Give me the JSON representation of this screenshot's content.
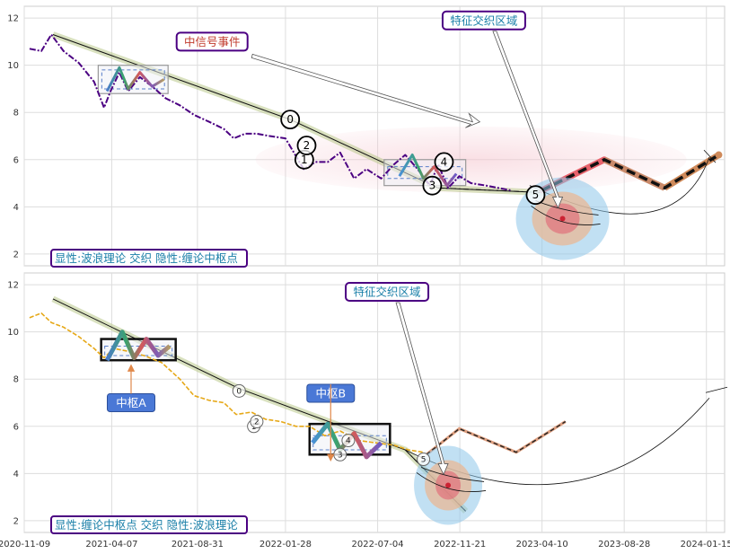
{
  "chart_data": [
    {
      "type": "line",
      "panel": "top",
      "ylim": [
        1.5,
        12.5
      ],
      "yticks": [
        2,
        4,
        6,
        8,
        10,
        12
      ],
      "x_range": [
        "2020-11-09",
        "2024-02-15"
      ],
      "grid": true,
      "price_color": "#4b0082",
      "price_series": [
        [
          "2020-11-18",
          10.7
        ],
        [
          "2020-12-08",
          10.6
        ],
        [
          "2020-12-25",
          11.3
        ],
        [
          "2021-01-15",
          10.6
        ],
        [
          "2021-02-10",
          10.1
        ],
        [
          "2021-03-08",
          9.3
        ],
        [
          "2021-03-25",
          8.2
        ],
        [
          "2021-04-05",
          8.9
        ],
        [
          "2021-04-20",
          9.7
        ],
        [
          "2021-05-05",
          8.9
        ],
        [
          "2021-05-25",
          9.5
        ],
        [
          "2021-06-15",
          9.1
        ],
        [
          "2021-07-08",
          8.6
        ],
        [
          "2021-08-01",
          8.3
        ],
        [
          "2021-08-25",
          7.9
        ],
        [
          "2021-09-20",
          7.6
        ],
        [
          "2021-10-15",
          7.3
        ],
        [
          "2021-11-01",
          6.9
        ],
        [
          "2021-11-20",
          7.1
        ],
        [
          "2021-12-10",
          7.1
        ],
        [
          "2022-01-01",
          7.0
        ],
        [
          "2022-01-28",
          6.9
        ],
        [
          "2022-02-28",
          5.6
        ],
        [
          "2022-03-20",
          5.9
        ],
        [
          "2022-04-10",
          5.9
        ],
        [
          "2022-05-01",
          6.3
        ],
        [
          "2022-05-25",
          5.2
        ],
        [
          "2022-06-15",
          5.6
        ],
        [
          "2022-07-10",
          5.2
        ],
        [
          "2022-08-01",
          5.8
        ],
        [
          "2022-08-20",
          6.2
        ],
        [
          "2022-09-10",
          5.6
        ],
        [
          "2022-10-01",
          4.9
        ],
        [
          "2022-10-15",
          5.8
        ],
        [
          "2022-11-01",
          4.8
        ],
        [
          "2022-11-20",
          5.3
        ],
        [
          "2022-12-10",
          5.0
        ],
        [
          "2023-01-05",
          4.9
        ],
        [
          "2023-02-15",
          4.7
        ]
      ],
      "zones": [
        {
          "x0": "2021-03-15",
          "x1": "2021-07-12",
          "y0": 9.0,
          "y1": 9.8,
          "outer": [
            8.8,
            10.0
          ]
        },
        {
          "x0": "2022-07-15",
          "x1": "2022-12-01",
          "y0": 5.2,
          "y1": 5.7,
          "outer": [
            4.9,
            6.0
          ]
        }
      ],
      "waves": [
        [
          [
            "2021-03-30",
            8.9
          ],
          [
            "2021-04-20",
            9.9
          ],
          [
            "2021-05-05",
            9.0
          ],
          [
            "2021-05-25",
            9.7
          ],
          [
            "2021-06-15",
            9.1
          ],
          [
            "2021-07-05",
            9.4
          ]
        ],
        [
          [
            "2022-08-10",
            5.3
          ],
          [
            "2022-09-01",
            6.2
          ],
          [
            "2022-09-20",
            5.2
          ],
          [
            "2022-10-08",
            5.7
          ],
          [
            "2022-10-30",
            4.9
          ],
          [
            "2022-11-15",
            5.4
          ]
        ]
      ],
      "trend_line": [
        [
          "2020-12-28",
          11.3
        ],
        [
          "2022-02-05",
          7.7
        ],
        [
          "2022-10-15",
          4.8
        ],
        [
          "2023-04-15",
          4.6
        ]
      ],
      "pivots": [
        {
          "label": "0",
          "x": "2022-02-05",
          "y": 7.7
        },
        {
          "label": "1",
          "x": "2022-03-01",
          "y": 6.0
        },
        {
          "label": "2",
          "x": "2022-03-05",
          "y": 6.6
        },
        {
          "label": "3",
          "x": "2022-10-05",
          "y": 4.9
        },
        {
          "label": "4",
          "x": "2022-10-25",
          "y": 5.9
        },
        {
          "label": "5",
          "x": "2023-03-30",
          "y": 4.5
        }
      ],
      "forecast": [
        [
          "2023-04-10",
          4.7
        ],
        [
          "2023-07-25",
          6.0
        ],
        [
          "2023-11-05",
          4.8
        ],
        [
          "2024-02-05",
          6.2
        ]
      ],
      "annotations": [
        {
          "text": "中信号事件",
          "x": "2021-09-25",
          "y": 11.0,
          "color": "#c0392b"
        },
        {
          "text": "特征交织区域",
          "x": "2023-01-01",
          "y": 11.9,
          "color": "#1a7fa8"
        }
      ],
      "legend_text": "显性:波浪理论 交织 隐性:缠论中枢点"
    },
    {
      "type": "line",
      "panel": "bottom",
      "ylim": [
        1.5,
        12.5
      ],
      "yticks": [
        2,
        4,
        6,
        8,
        10,
        12
      ],
      "x_range": [
        "2020-11-09",
        "2024-02-15"
      ],
      "grid": true,
      "price_color": "#e6a817",
      "price_series": [
        [
          "2020-11-18",
          10.6
        ],
        [
          "2020-12-08",
          10.8
        ],
        [
          "2020-12-25",
          10.4
        ],
        [
          "2021-01-15",
          10.2
        ],
        [
          "2021-02-10",
          9.8
        ],
        [
          "2021-03-08",
          9.3
        ],
        [
          "2021-03-25",
          8.9
        ],
        [
          "2021-04-10",
          9.3
        ],
        [
          "2021-05-01",
          9.2
        ],
        [
          "2021-06-01",
          9.0
        ],
        [
          "2021-07-01",
          8.7
        ],
        [
          "2021-08-01",
          8.0
        ],
        [
          "2021-08-25",
          7.3
        ],
        [
          "2021-09-20",
          7.1
        ],
        [
          "2021-10-15",
          7.0
        ],
        [
          "2021-11-05",
          6.5
        ],
        [
          "2021-12-01",
          6.6
        ],
        [
          "2021-12-25",
          6.3
        ],
        [
          "2022-01-20",
          6.2
        ],
        [
          "2022-02-15",
          6.0
        ],
        [
          "2022-03-10",
          6.0
        ],
        [
          "2022-04-05",
          5.6
        ],
        [
          "2022-05-01",
          5.8
        ],
        [
          "2022-06-01",
          5.4
        ],
        [
          "2022-07-01",
          5.3
        ],
        [
          "2022-08-01",
          5.2
        ],
        [
          "2022-08-25",
          5.0
        ],
        [
          "2022-09-20",
          4.9
        ]
      ],
      "zones": [
        {
          "x0": "2021-03-20",
          "x1": "2021-07-25",
          "y0": 9.0,
          "y1": 9.4,
          "outer": [
            8.8,
            9.7
          ]
        },
        {
          "x0": "2022-03-10",
          "x1": "2022-07-25",
          "y0": 5.0,
          "y1": 5.6,
          "outer": [
            4.8,
            6.1
          ]
        }
      ],
      "waves": [
        [
          [
            "2021-03-30",
            8.8
          ],
          [
            "2021-04-25",
            10.0
          ],
          [
            "2021-05-15",
            8.9
          ],
          [
            "2021-06-05",
            9.7
          ],
          [
            "2021-06-25",
            9.0
          ],
          [
            "2021-07-15",
            9.4
          ]
        ],
        [
          [
            "2022-03-15",
            5.3
          ],
          [
            "2022-04-10",
            6.1
          ],
          [
            "2022-05-01",
            5.0
          ],
          [
            "2022-05-25",
            5.7
          ],
          [
            "2022-06-15",
            4.7
          ],
          [
            "2022-07-10",
            5.3
          ]
        ]
      ],
      "trend_line": [
        [
          "2020-12-28",
          11.4
        ],
        [
          "2021-11-10",
          7.6
        ],
        [
          "2022-08-20",
          5.0
        ],
        [
          "2022-12-01",
          2.4
        ]
      ],
      "pivots": [
        {
          "label": "0",
          "x": "2021-11-10",
          "y": 7.5
        },
        {
          "label": "1",
          "x": "2021-12-05",
          "y": 6.0
        },
        {
          "label": "2",
          "x": "2021-12-10",
          "y": 6.2
        },
        {
          "label": "3",
          "x": "2022-05-01",
          "y": 4.8
        },
        {
          "label": "4",
          "x": "2022-05-15",
          "y": 5.4
        },
        {
          "label": "5",
          "x": "2022-09-20",
          "y": 4.6
        }
      ],
      "forecast": [
        [
          "2022-09-25",
          4.8
        ],
        [
          "2022-11-20",
          5.9
        ],
        [
          "2023-02-25",
          4.9
        ],
        [
          "2023-05-20",
          6.2
        ]
      ],
      "annotations": [
        {
          "text": "特征交织区域",
          "x": "2022-07-20",
          "y": 11.7,
          "color": "#1a7fa8"
        },
        {
          "text": "中枢A",
          "x": "2021-05-10",
          "y": 7.0,
          "color": "#ffffff"
        },
        {
          "text": "中枢B",
          "x": "2022-04-15",
          "y": 7.4,
          "color": "#ffffff"
        }
      ],
      "legend_text": "显性:缠论中枢点 交织 隐性:波浪理论"
    }
  ],
  "x_ticks": [
    "2020-11-09",
    "2021-04-07",
    "2021-08-31",
    "2022-01-28",
    "2022-07-04",
    "2022-11-21",
    "2023-04-10",
    "2023-08-28",
    "2024-01-15"
  ]
}
